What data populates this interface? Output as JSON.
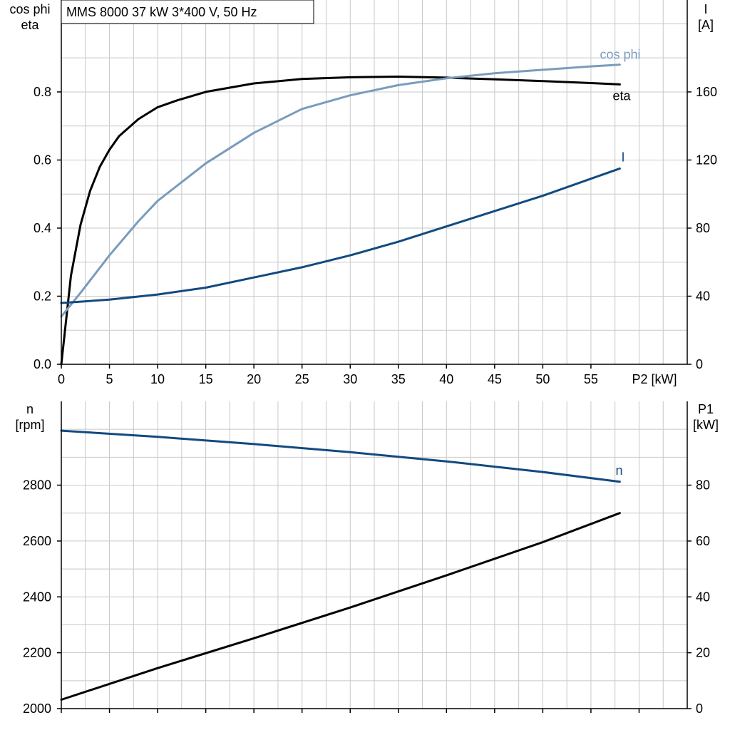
{
  "title": "MMS 8000   37 kW   3*400 V, 50 Hz",
  "colors": {
    "eta": "#000000",
    "cos_phi": "#7a9cbc",
    "current": "#124a80",
    "speed": "#124a80",
    "p1": "#000000",
    "grid": "#c8c8c8"
  },
  "chart_data": [
    {
      "type": "line",
      "panel": "top",
      "grid": true,
      "x_axis": {
        "label": "P2 [kW]",
        "range": [
          0,
          65
        ],
        "ticks": [
          0,
          5,
          10,
          15,
          20,
          25,
          30,
          35,
          40,
          45,
          50,
          55
        ],
        "tick_labels": [
          "0",
          "5",
          "10",
          "15",
          "20",
          "25",
          "30",
          "35",
          "40",
          "45",
          "50",
          "55"
        ]
      },
      "y_left": {
        "label_lines": [
          "cos phi",
          "eta"
        ],
        "range": [
          0,
          1.07
        ],
        "ticks": [
          0,
          0.2,
          0.4,
          0.6,
          0.8
        ],
        "tick_labels": [
          "0.0",
          "0.2",
          "0.4",
          "0.6",
          "0.8"
        ]
      },
      "y_right": {
        "label_lines": [
          "I",
          "[A]"
        ],
        "range": [
          0,
          214
        ],
        "ticks": [
          0,
          40,
          80,
          120,
          160
        ],
        "tick_labels": [
          "0",
          "40",
          "80",
          "120",
          "160"
        ]
      },
      "series": [
        {
          "name": "eta",
          "axis": "left",
          "color_key": "eta",
          "x": [
            0,
            1,
            2,
            3,
            4,
            5,
            6,
            8,
            10,
            12,
            15,
            20,
            25,
            30,
            35,
            40,
            45,
            50,
            55,
            58
          ],
          "y": [
            0.0,
            0.26,
            0.41,
            0.51,
            0.58,
            0.63,
            0.67,
            0.72,
            0.755,
            0.775,
            0.8,
            0.825,
            0.838,
            0.843,
            0.845,
            0.842,
            0.837,
            0.832,
            0.826,
            0.822
          ]
        },
        {
          "name": "cos phi",
          "axis": "left",
          "color_key": "cos_phi",
          "x": [
            0,
            2,
            5,
            8,
            10,
            15,
            20,
            25,
            30,
            35,
            40,
            45,
            50,
            55,
            58
          ],
          "y": [
            0.14,
            0.21,
            0.32,
            0.42,
            0.48,
            0.59,
            0.68,
            0.75,
            0.79,
            0.82,
            0.84,
            0.855,
            0.865,
            0.875,
            0.88
          ]
        },
        {
          "name": "I",
          "axis": "right",
          "color_key": "current",
          "x": [
            0,
            5,
            10,
            15,
            20,
            25,
            30,
            35,
            40,
            45,
            50,
            55,
            58
          ],
          "y": [
            36,
            38,
            41,
            45,
            51,
            57,
            64,
            72,
            81,
            90,
            99,
            109,
            115
          ]
        }
      ]
    },
    {
      "type": "line",
      "panel": "bottom",
      "grid": true,
      "x_axis": {
        "range": [
          0,
          65
        ],
        "ticks": [
          0,
          5,
          10,
          15,
          20,
          25,
          30,
          35,
          40,
          45,
          50,
          55,
          60
        ]
      },
      "y_left": {
        "label_lines": [
          "n",
          "[rpm]"
        ],
        "range": [
          2000,
          3100
        ],
        "ticks": [
          2000,
          2200,
          2400,
          2600,
          2800
        ],
        "tick_labels": [
          "2000",
          "2200",
          "2400",
          "2600",
          "2800"
        ]
      },
      "y_right": {
        "label_lines": [
          "P1",
          "[kW]"
        ],
        "range": [
          0,
          110
        ],
        "ticks": [
          0,
          20,
          40,
          60,
          80
        ],
        "tick_labels": [
          "0",
          "20",
          "40",
          "60",
          "80"
        ]
      },
      "series": [
        {
          "name": "n",
          "axis": "left",
          "color_key": "speed",
          "x": [
            0,
            10,
            20,
            30,
            40,
            50,
            58
          ],
          "y": [
            2995,
            2973,
            2947,
            2918,
            2885,
            2847,
            2812
          ]
        },
        {
          "name": "",
          "axis": "right",
          "color_key": "p1",
          "x": [
            0,
            10,
            20,
            30,
            40,
            50,
            58
          ],
          "y": [
            3.2,
            14.5,
            25.2,
            36.2,
            47.7,
            59.6,
            70.0
          ]
        }
      ]
    }
  ]
}
